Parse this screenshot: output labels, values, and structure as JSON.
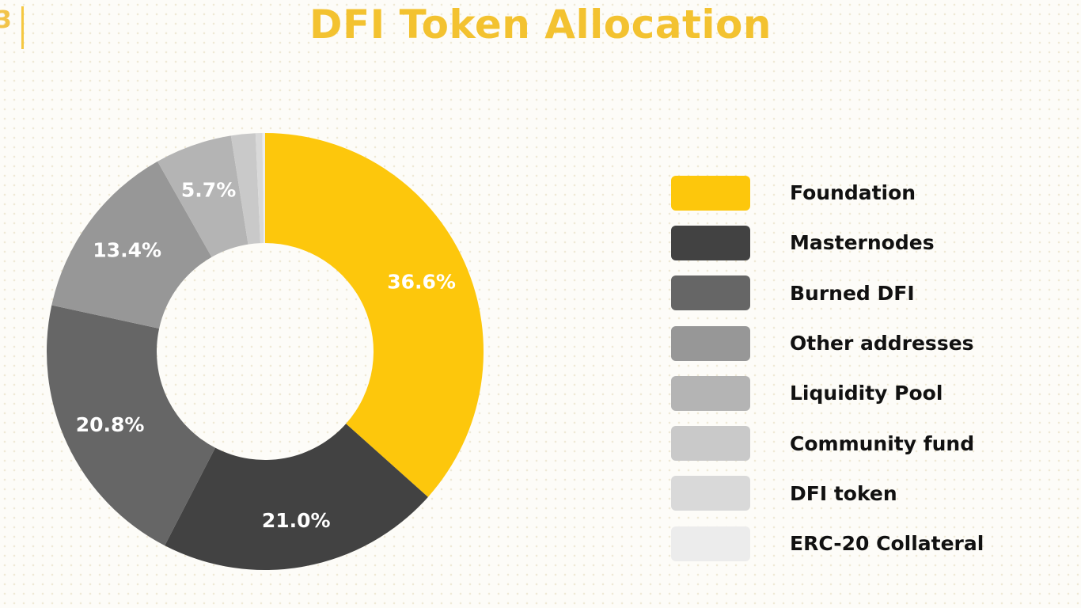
{
  "page_number": "3",
  "chart_data": {
    "type": "pie",
    "variant": "donut",
    "title": "DFI Token Allocation",
    "legend_position": "right",
    "slices": [
      {
        "name": "Foundation",
        "value": 36.6,
        "label": "36.6%",
        "color": "#fdc70c"
      },
      {
        "name": "Masternodes",
        "value": 21.0,
        "label": "21.0%",
        "color": "#424242"
      },
      {
        "name": "Burned DFI",
        "value": 20.8,
        "label": "20.8%",
        "color": "#666666"
      },
      {
        "name": "Other addresses",
        "value": 13.4,
        "label": "13.4%",
        "color": "#979797"
      },
      {
        "name": "Liquidity Pool",
        "value": 5.7,
        "label": "5.7%",
        "color": "#b4b4b4"
      },
      {
        "name": "Community fund",
        "value": 1.8,
        "label": "",
        "color": "#c9c9c9"
      },
      {
        "name": "DFI token",
        "value": 0.5,
        "label": "",
        "color": "#d9d9d9"
      },
      {
        "name": "ERC-20 Collateral",
        "value": 0.2,
        "label": "",
        "color": "#ececec"
      }
    ]
  }
}
